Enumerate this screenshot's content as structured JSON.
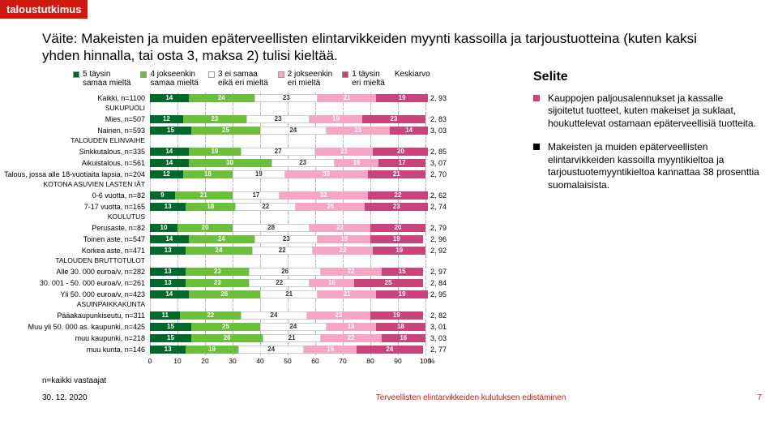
{
  "brand": "taloustutkimus",
  "title": "Väite: Makeisten ja muiden epäterveellisten elintarvikkeiden myynti kassoilla ja tarjoustuotteina (kuten kaksi yhden hinnalla, tai osta 3, maksa 2) tulisi kieltää.",
  "legend": {
    "items": [
      {
        "label": "5 täysin\nsamaa mieltä",
        "color": "#00682c"
      },
      {
        "label": "4 jokseenkin\nsamaa mieltä",
        "color": "#6bbf3b"
      },
      {
        "label": "3 ei samaa\neikä eri mieltä",
        "color": "#ffffff"
      },
      {
        "label": "2 jokseenkin\neri mieltä",
        "color": "#f4a6c4"
      },
      {
        "label": "1 täysin\neri mieltä",
        "color": "#c9447b"
      }
    ],
    "avg_label": "Keskiarvo"
  },
  "chart": {
    "xmax": 100,
    "xticks": [
      0,
      10,
      20,
      30,
      40,
      50,
      60,
      70,
      80,
      90,
      100
    ],
    "xsuffix": "%",
    "rows": [
      {
        "label": "Kaikki, n=1100",
        "v": [
          14,
          24,
          23,
          21,
          19
        ],
        "avg": "2, 93"
      },
      {
        "header": "SUKUPUOLI"
      },
      {
        "label": "Mies, n=507",
        "v": [
          12,
          23,
          23,
          19,
          23
        ],
        "avg": "2, 83"
      },
      {
        "label": "Nainen, n=593",
        "v": [
          15,
          25,
          24,
          23,
          14
        ],
        "avg": "3, 03"
      },
      {
        "header": "TALOUDEN ELINVAIHE"
      },
      {
        "label": "Sinkkutalous, n=335",
        "v": [
          14,
          19,
          27,
          21,
          20
        ],
        "avg": "2, 85"
      },
      {
        "label": "Aikuistalous, n=561",
        "v": [
          14,
          30,
          23,
          16,
          17
        ],
        "avg": "3, 07"
      },
      {
        "label": "Talous, jossa alle 18-vuotiaita lapsia, n=204",
        "v": [
          12,
          18,
          19,
          30,
          21
        ],
        "avg": "2, 70"
      },
      {
        "header": "KOTONA ASUVIEN LASTEN IÄT"
      },
      {
        "label": "0-6 vuotta, n=82",
        "v": [
          9,
          21,
          17,
          32,
          22
        ],
        "avg": "2, 62"
      },
      {
        "label": "7-17 vuotta, n=165",
        "v": [
          13,
          18,
          22,
          25,
          23
        ],
        "avg": "2, 74"
      },
      {
        "header": "KOULUTUS"
      },
      {
        "label": "Perusaste, n=82",
        "v": [
          10,
          20,
          28,
          22,
          20
        ],
        "avg": "2, 79"
      },
      {
        "label": "Toinen aste, n=547",
        "v": [
          14,
          24,
          23,
          19,
          19
        ],
        "avg": "2, 96"
      },
      {
        "label": "Korkea aste, n=471",
        "v": [
          13,
          24,
          22,
          22,
          19
        ],
        "avg": "2, 92"
      },
      {
        "header": "TALOUDEN BRUTTOTULOT"
      },
      {
        "label": "Alle 30. 000 euroa/v, n=282",
        "v": [
          13,
          23,
          26,
          22,
          15
        ],
        "avg": "2, 97"
      },
      {
        "label": "30. 001 - 50. 000 euroa/v, n=261",
        "v": [
          13,
          23,
          22,
          16,
          25
        ],
        "avg": "2, 84"
      },
      {
        "label": "Yli 50. 000 euroa/v, n=423",
        "v": [
          14,
          26,
          21,
          21,
          19
        ],
        "avg": "2, 95"
      },
      {
        "header": "ASUINPAIKKAKUNTA"
      },
      {
        "label": "Pääakaupunkiseutu, n=311",
        "v": [
          11,
          22,
          24,
          23,
          19
        ],
        "avg": "2, 82"
      },
      {
        "label": "Muu yli 50. 000 as. kaupunki, n=425",
        "v": [
          15,
          25,
          24,
          18,
          18
        ],
        "avg": "3, 01"
      },
      {
        "label": "muu kaupunki, n=218",
        "v": [
          15,
          26,
          21,
          22,
          16
        ],
        "avg": "3, 03"
      },
      {
        "label": "muu kunta, n=146",
        "v": [
          13,
          19,
          24,
          19,
          24
        ],
        "avg": "2, 77"
      }
    ]
  },
  "right": {
    "heading": "Selite",
    "bullets": [
      {
        "color": "#c9447b",
        "text": "Kauppojen paljousalennukset ja kassalle sijoitetut tuotteet, kuten makeiset ja suklaat, houkuttelevat ostamaan epäterveellisiä tuotteita."
      },
      {
        "color": "#000000",
        "text": "Makeisten ja muiden epäterveellisten elintarvikkeiden kassoilla myyntikieltoa ja tarjoustuotemyyntikieltoa kannattaa 38 prosenttia suomalaisista."
      }
    ]
  },
  "footnote": "n=kaikki vastaajat",
  "date": "30. 12. 2020",
  "footer_mid": "Terveellisten elintarvikkeiden kulutuksen edistäminen",
  "page_no": "7"
}
